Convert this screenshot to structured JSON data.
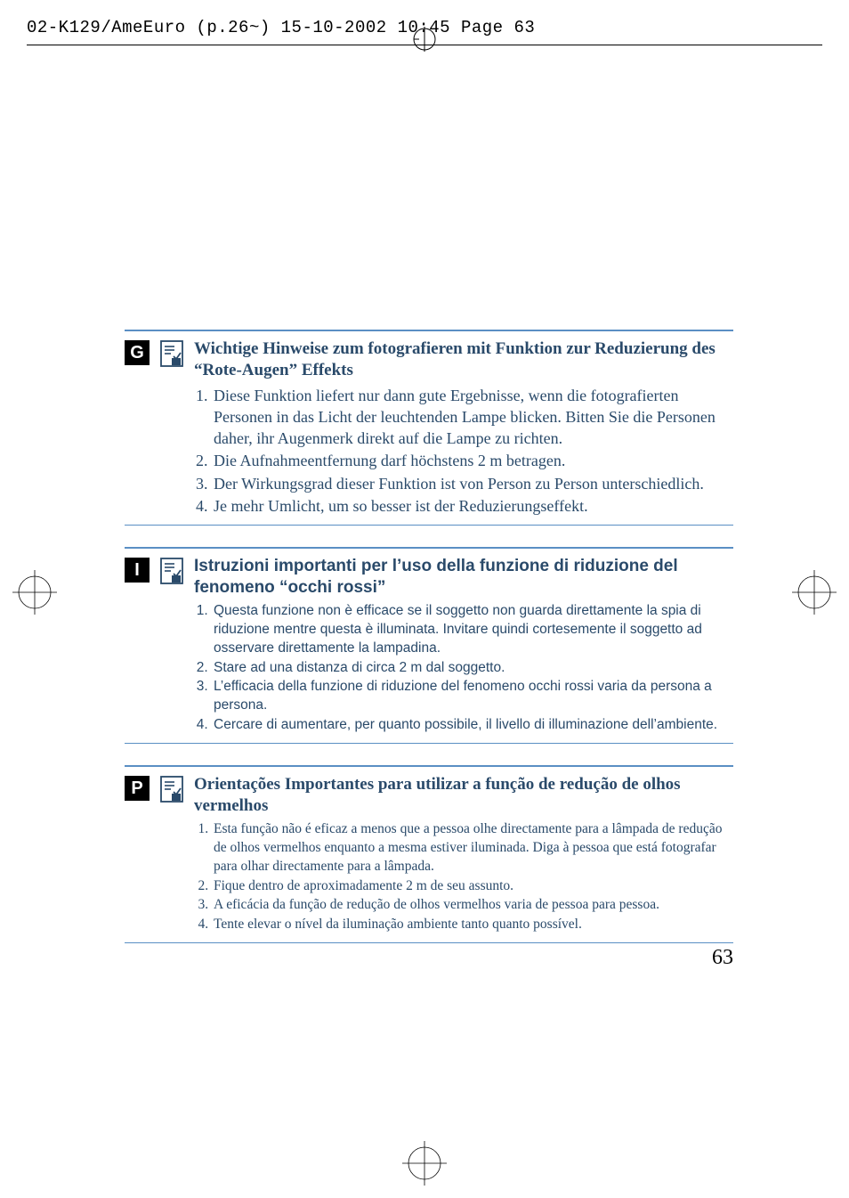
{
  "header": "02-K129/AmeEuro (p.26~)  15-10-2002  10:45  Page 63",
  "colors": {
    "rule": "#5a8fc4",
    "text": "#2a4a6a",
    "black": "#000000"
  },
  "sections": [
    {
      "lang": "G",
      "title_class": "title-serif",
      "list_class": "list-serif",
      "title": "Wichtige Hinweise zum fotografieren mit Funktion zur Reduzierung des “Rote-Augen” Effekts",
      "items": [
        "Diese Funktion liefert nur dann gute Ergebnisse, wenn die fotografierten Personen in das Licht der leuchtenden Lampe blicken. Bitten Sie die Personen daher, ihr Augenmerk direkt auf die Lampe zu richten.",
        "Die Aufnahmeentfernung darf höchstens 2 m betragen.",
        "Der Wirkungsgrad dieser Funktion ist von Person zu Person unterschiedlich.",
        "Je mehr Umlicht, um so besser ist der Reduzierungseffekt."
      ]
    },
    {
      "lang": "I",
      "title_class": "title-sans",
      "list_class": "list-sans",
      "title": "Istruzioni importanti per l’uso della funzione di riduzione del fenomeno “occhi rossi”",
      "items": [
        "Questa funzione non è efficace se il soggetto non guarda direttamente la spia di riduzione mentre questa è illuminata. Invitare quindi cortesemente il soggetto ad osservare direttamente la lampadina.",
        "Stare ad una distanza di circa 2 m dal soggetto.",
        "L’efficacia della funzione di riduzione del fenomeno occhi rossi varia da persona a persona.",
        "Cercare di aumentare, per quanto possibile, il livello di illuminazione dell’ambiente."
      ]
    },
    {
      "lang": "P",
      "title_class": "title-serif",
      "list_class": "list-serif-sm",
      "title": "Orientações Importantes para utilizar a função de redução de olhos vermelhos",
      "items": [
        "Esta função não é eficaz a menos que a pessoa olhe directamente para a lâmpada de redução de olhos vermelhos enquanto a mesma estiver iluminada. Diga à pessoa que está fotografar para olhar directamente para a lâmpada.",
        "Fique dentro de aproximadamente 2 m de seu assunto.",
        "A eficácia da função de redução de olhos vermelhos varia de pessoa para pessoa.",
        "Tente elevar o nível da iluminação ambiente tanto quanto possível."
      ]
    }
  ],
  "page_number": "63"
}
